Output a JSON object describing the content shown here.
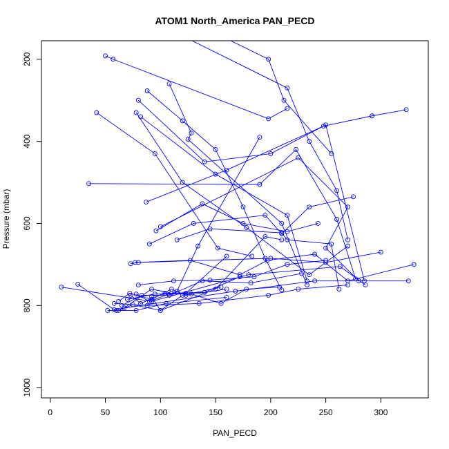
{
  "chart_data": {
    "type": "line",
    "title": "ATOM1 North_America PAN_PECD",
    "xlabel": "PAN_PECD",
    "ylabel": "Pressure (mbar)",
    "xlim": [
      -8,
      343
    ],
    "ylim": [
      1025,
      155
    ],
    "y_reversed": true,
    "grid": false,
    "line_color": "#0000ff",
    "x_ticks": [
      0,
      50,
      100,
      150,
      200,
      250,
      300
    ],
    "x_tick_labels": [
      "0",
      "50",
      "100",
      "150",
      "200",
      "250",
      "300"
    ],
    "y_ticks": [
      200,
      400,
      600,
      800,
      1000
    ],
    "y_tick_labels": [
      "200",
      "400",
      "600",
      "800",
      "1000"
    ],
    "series": [
      {
        "x": [
          135,
          160,
          198,
          212,
          255
        ],
        "y": [
          150,
          150,
          200,
          300,
          430
        ]
      },
      {
        "x": [
          125,
          215,
          235,
          260,
          270
        ],
        "y": [
          150,
          270,
          400,
          520,
          640
        ]
      },
      {
        "x": [
          50,
          57,
          198,
          215
        ],
        "y": [
          192,
          200,
          345,
          320
        ]
      },
      {
        "x": [
          88,
          120,
          150,
          175,
          195,
          210
        ],
        "y": [
          277,
          350,
          420,
          560,
          685,
          762
        ]
      },
      {
        "x": [
          80,
          140,
          200,
          250,
          285
        ],
        "y": [
          300,
          450,
          430,
          360,
          740
        ]
      },
      {
        "x": [
          108,
          128,
          125,
          210,
          233
        ],
        "y": [
          260,
          380,
          395,
          600,
          750
        ]
      },
      {
        "x": [
          78,
          120,
          178,
          235,
          270
        ],
        "y": [
          330,
          500,
          610,
          725,
          655
        ]
      },
      {
        "x": [
          42,
          95,
          152,
          183
        ],
        "y": [
          330,
          430,
          660,
          680
        ]
      },
      {
        "x": [
          82,
          150,
          215,
          233
        ],
        "y": [
          340,
          480,
          580,
          740
        ]
      },
      {
        "x": [
          35,
          190,
          223,
          260,
          277
        ],
        "y": [
          503,
          505,
          420,
          590,
          735
        ]
      },
      {
        "x": [
          87,
          160,
          248,
          292,
          323
        ],
        "y": [
          548,
          470,
          363,
          338,
          323
        ]
      },
      {
        "x": [
          96,
          138,
          175,
          215,
          243
        ],
        "y": [
          618,
          552,
          600,
          620,
          600
        ]
      },
      {
        "x": [
          100,
          225,
          270,
          250,
          280
        ],
        "y": [
          608,
          440,
          560,
          660,
          740
        ]
      },
      {
        "x": [
          115,
          145,
          210,
          215,
          255,
          262
        ],
        "y": [
          640,
          613,
          623,
          640,
          650,
          760
        ]
      },
      {
        "x": [
          90,
          130,
          195,
          210,
          235,
          275
        ],
        "y": [
          650,
          600,
          580,
          625,
          560,
          535
        ]
      },
      {
        "x": [
          77,
          127,
          172,
          197,
          240,
          270,
          330
        ],
        "y": [
          695,
          690,
          725,
          690,
          675,
          740,
          700
        ]
      },
      {
        "x": [
          73,
          80,
          200,
          250,
          300
        ],
        "y": [
          698,
          695,
          685,
          695,
          670
        ]
      },
      {
        "x": [
          10,
          92,
          180,
          263,
          286
        ],
        "y": [
          755,
          790,
          725,
          705,
          750
        ]
      },
      {
        "x": [
          25,
          58,
          168,
          240,
          325
        ],
        "y": [
          748,
          810,
          765,
          740,
          740
        ]
      },
      {
        "x": [
          52,
          60,
          78,
          105,
          160
        ],
        "y": [
          812,
          812,
          812,
          795,
          780
        ]
      },
      {
        "x": [
          62,
          72,
          92,
          110,
          123,
          160
        ],
        "y": [
          790,
          770,
          785,
          760,
          775,
          760
        ]
      },
      {
        "x": [
          80,
          112,
          145,
          185,
          215,
          250
        ],
        "y": [
          750,
          740,
          738,
          730,
          700,
          690
        ]
      },
      {
        "x": [
          70,
          95,
          128,
          155,
          178,
          208
        ],
        "y": [
          785,
          772,
          772,
          795,
          760,
          755
        ]
      },
      {
        "x": [
          58,
          88,
          135,
          198,
          225,
          270
        ],
        "y": [
          795,
          800,
          795,
          775,
          760,
          750
        ]
      },
      {
        "x": [
          65,
          83,
          108,
          138,
          182,
          228
        ],
        "y": [
          800,
          775,
          775,
          740,
          745,
          722
        ]
      },
      {
        "x": [
          62,
          75,
          100,
          120,
          155
        ],
        "y": [
          812,
          798,
          812,
          775,
          755
        ]
      },
      {
        "x": [
          67,
          92,
          110,
          140,
          172
        ],
        "y": [
          806,
          760,
          770,
          768,
          730
        ]
      },
      {
        "x": [
          92,
          100,
          150,
          195,
          210
        ],
        "y": [
          778,
          812,
          760,
          632,
          640
        ]
      },
      {
        "x": [
          78,
          90,
          115,
          134,
          190
        ],
        "y": [
          772,
          790,
          765,
          655,
          390
        ]
      },
      {
        "x": [
          73,
          82,
          104,
          123,
          160
        ],
        "y": [
          775,
          795,
          770,
          770,
          680
        ]
      }
    ]
  }
}
